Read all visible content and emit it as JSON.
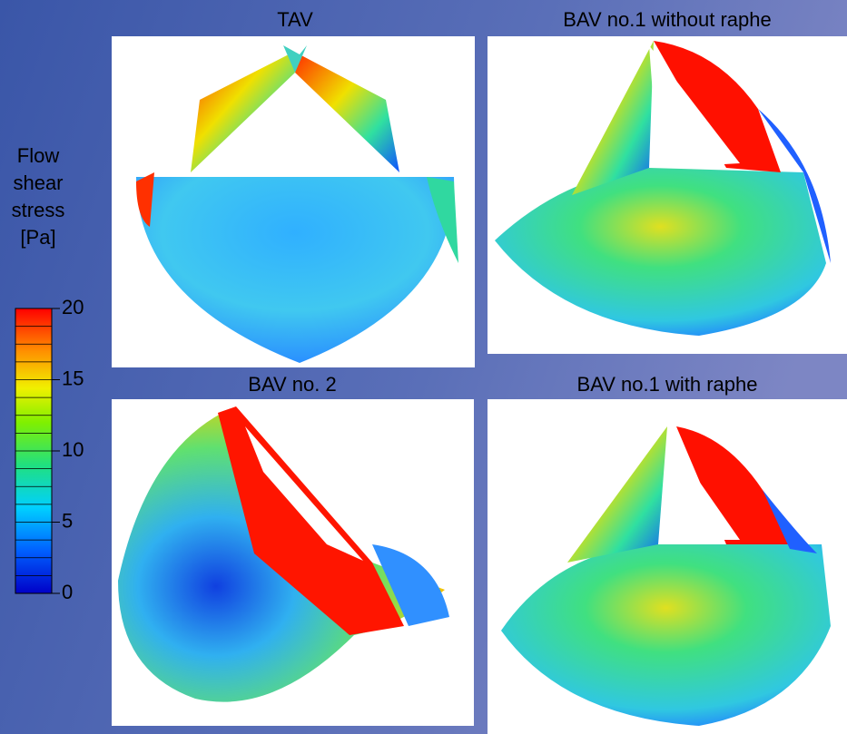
{
  "panels": [
    {
      "title": "TAV"
    },
    {
      "title": "BAV no.1 without raphe"
    },
    {
      "title": "BAV no. 2"
    },
    {
      "title": "BAV no.1 with raphe"
    }
  ],
  "colorbar": {
    "label_lines": [
      "Flow",
      "shear",
      "stress",
      "[Pa]"
    ],
    "range": [
      0,
      20
    ],
    "ticks": [
      0,
      5,
      10,
      15,
      20
    ]
  }
}
